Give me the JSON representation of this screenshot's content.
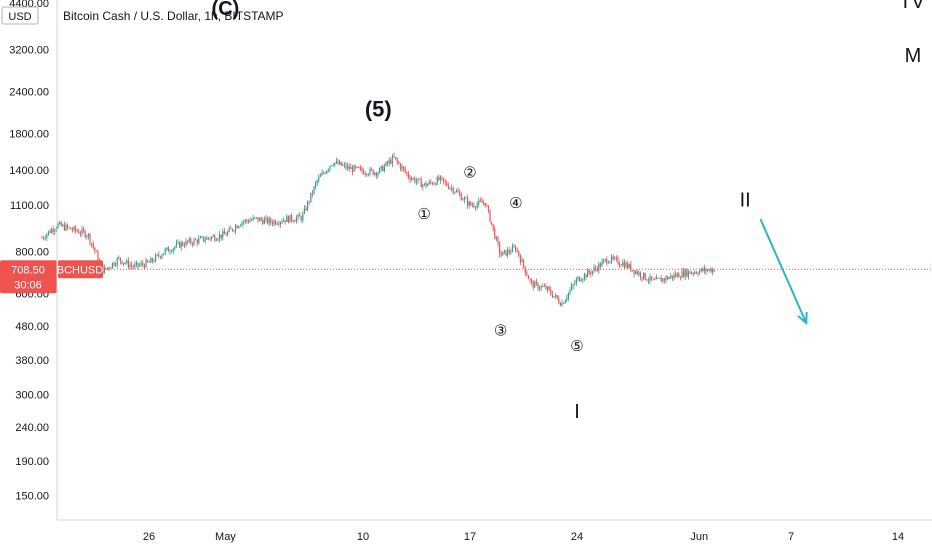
{
  "chart_title": "Bitcoin Cash / U.S. Dollar, 1h, BITSTAMP",
  "currency_unit": "USD",
  "corner_labels": [
    "TV",
    "M"
  ],
  "price_marker": {
    "price_label": "708.50",
    "symbol": "BCHUSD",
    "countdown": "30:06",
    "price": 708.5,
    "color": "#ef5350"
  },
  "colors": {
    "up": "#26a69a",
    "down": "#ef5350",
    "wave_red": "#d32f2f",
    "arrow": "#29b6c8",
    "axis_line": "#d1d4dc"
  },
  "chart_data": {
    "type": "candlestick",
    "title": "Bitcoin Cash / U.S. Dollar, 1h, BITSTAMP",
    "y_scale": "log",
    "y_tick_labels": [
      "4400.00",
      "3200.00",
      "2400.00",
      "1800.00",
      "1400.00",
      "1100.00",
      "800.00",
      "600.00",
      "480.00",
      "380.00",
      "300.00",
      "240.00",
      "190.00",
      "150.00"
    ],
    "y_ticks": [
      4400,
      3200,
      2400,
      1800,
      1400,
      1100,
      800,
      600,
      480,
      380,
      300,
      240,
      190,
      150
    ],
    "x_tick_labels": [
      "26",
      "May",
      "10",
      "17",
      "24",
      "Jun",
      "7",
      "14"
    ],
    "x_ticks": [
      "2021-04-26",
      "2021-05-01",
      "2021-05-10",
      "2021-05-17",
      "2021-05-24",
      "2021-06-01",
      "2021-06-07",
      "2021-06-14"
    ],
    "price_path": [
      [
        "2021-04-19",
        880
      ],
      [
        "2021-04-20",
        960
      ],
      [
        "2021-04-21",
        930
      ],
      [
        "2021-04-22",
        900
      ],
      [
        "2021-04-23",
        700
      ],
      [
        "2021-04-24",
        760
      ],
      [
        "2021-04-25",
        720
      ],
      [
        "2021-04-26",
        740
      ],
      [
        "2021-04-27",
        800
      ],
      [
        "2021-04-28",
        840
      ],
      [
        "2021-04-29",
        860
      ],
      [
        "2021-04-30",
        880
      ],
      [
        "2021-05-01",
        900
      ],
      [
        "2021-05-02",
        980
      ],
      [
        "2021-05-03",
        1000
      ],
      [
        "2021-05-04",
        980
      ],
      [
        "2021-05-05",
        1000
      ],
      [
        "2021-05-06",
        1010
      ],
      [
        "2021-05-07",
        1300
      ],
      [
        "2021-05-08",
        1480
      ],
      [
        "2021-05-09",
        1420
      ],
      [
        "2021-05-10",
        1390
      ],
      [
        "2021-05-11",
        1380
      ],
      [
        "2021-05-12",
        1520
      ],
      [
        "2021-05-13",
        1340
      ],
      [
        "2021-05-14",
        1260
      ],
      [
        "2021-05-15",
        1310
      ],
      [
        "2021-05-16",
        1220
      ],
      [
        "2021-05-17",
        1100
      ],
      [
        "2021-05-18",
        1120
      ],
      [
        "2021-05-19",
        780
      ],
      [
        "2021-05-20",
        820
      ],
      [
        "2021-05-21",
        640
      ],
      [
        "2021-05-22",
        620
      ],
      [
        "2021-05-23",
        560
      ],
      [
        "2021-05-24",
        660
      ],
      [
        "2021-05-25",
        700
      ],
      [
        "2021-05-26",
        760
      ],
      [
        "2021-05-27",
        740
      ],
      [
        "2021-05-28",
        690
      ],
      [
        "2021-05-29",
        650
      ],
      [
        "2021-05-30",
        670
      ],
      [
        "2021-05-31",
        690
      ],
      [
        "2021-06-01",
        700
      ],
      [
        "2021-06-02",
        708.5
      ]
    ],
    "wave_annotations": [
      {
        "text": "(C)",
        "date": "2021-05-01",
        "price": 4050,
        "style": "red"
      },
      {
        "text": "(5)",
        "date": "2021-05-11",
        "price": 2020,
        "style": "large"
      },
      {
        "text": "①",
        "date": "2021-05-14",
        "price": 1000,
        "style": "circle"
      },
      {
        "text": "②",
        "date": "2021-05-17",
        "price": 1330,
        "style": "circle"
      },
      {
        "text": "③",
        "date": "2021-05-19",
        "price": 450,
        "style": "circle"
      },
      {
        "text": "④",
        "date": "2021-05-20",
        "price": 1080,
        "style": "circle"
      },
      {
        "text": "⑤",
        "date": "2021-05-24",
        "price": 405,
        "style": "circle"
      },
      {
        "text": "I",
        "date": "2021-05-24",
        "price": 255,
        "style": "roman"
      },
      {
        "text": "II",
        "date": "2021-06-04",
        "price": 1090,
        "style": "roman"
      }
    ],
    "projection_arrow": {
      "from": [
        "2021-06-05",
        1000
      ],
      "to": [
        "2021-06-08",
        490
      ]
    }
  }
}
